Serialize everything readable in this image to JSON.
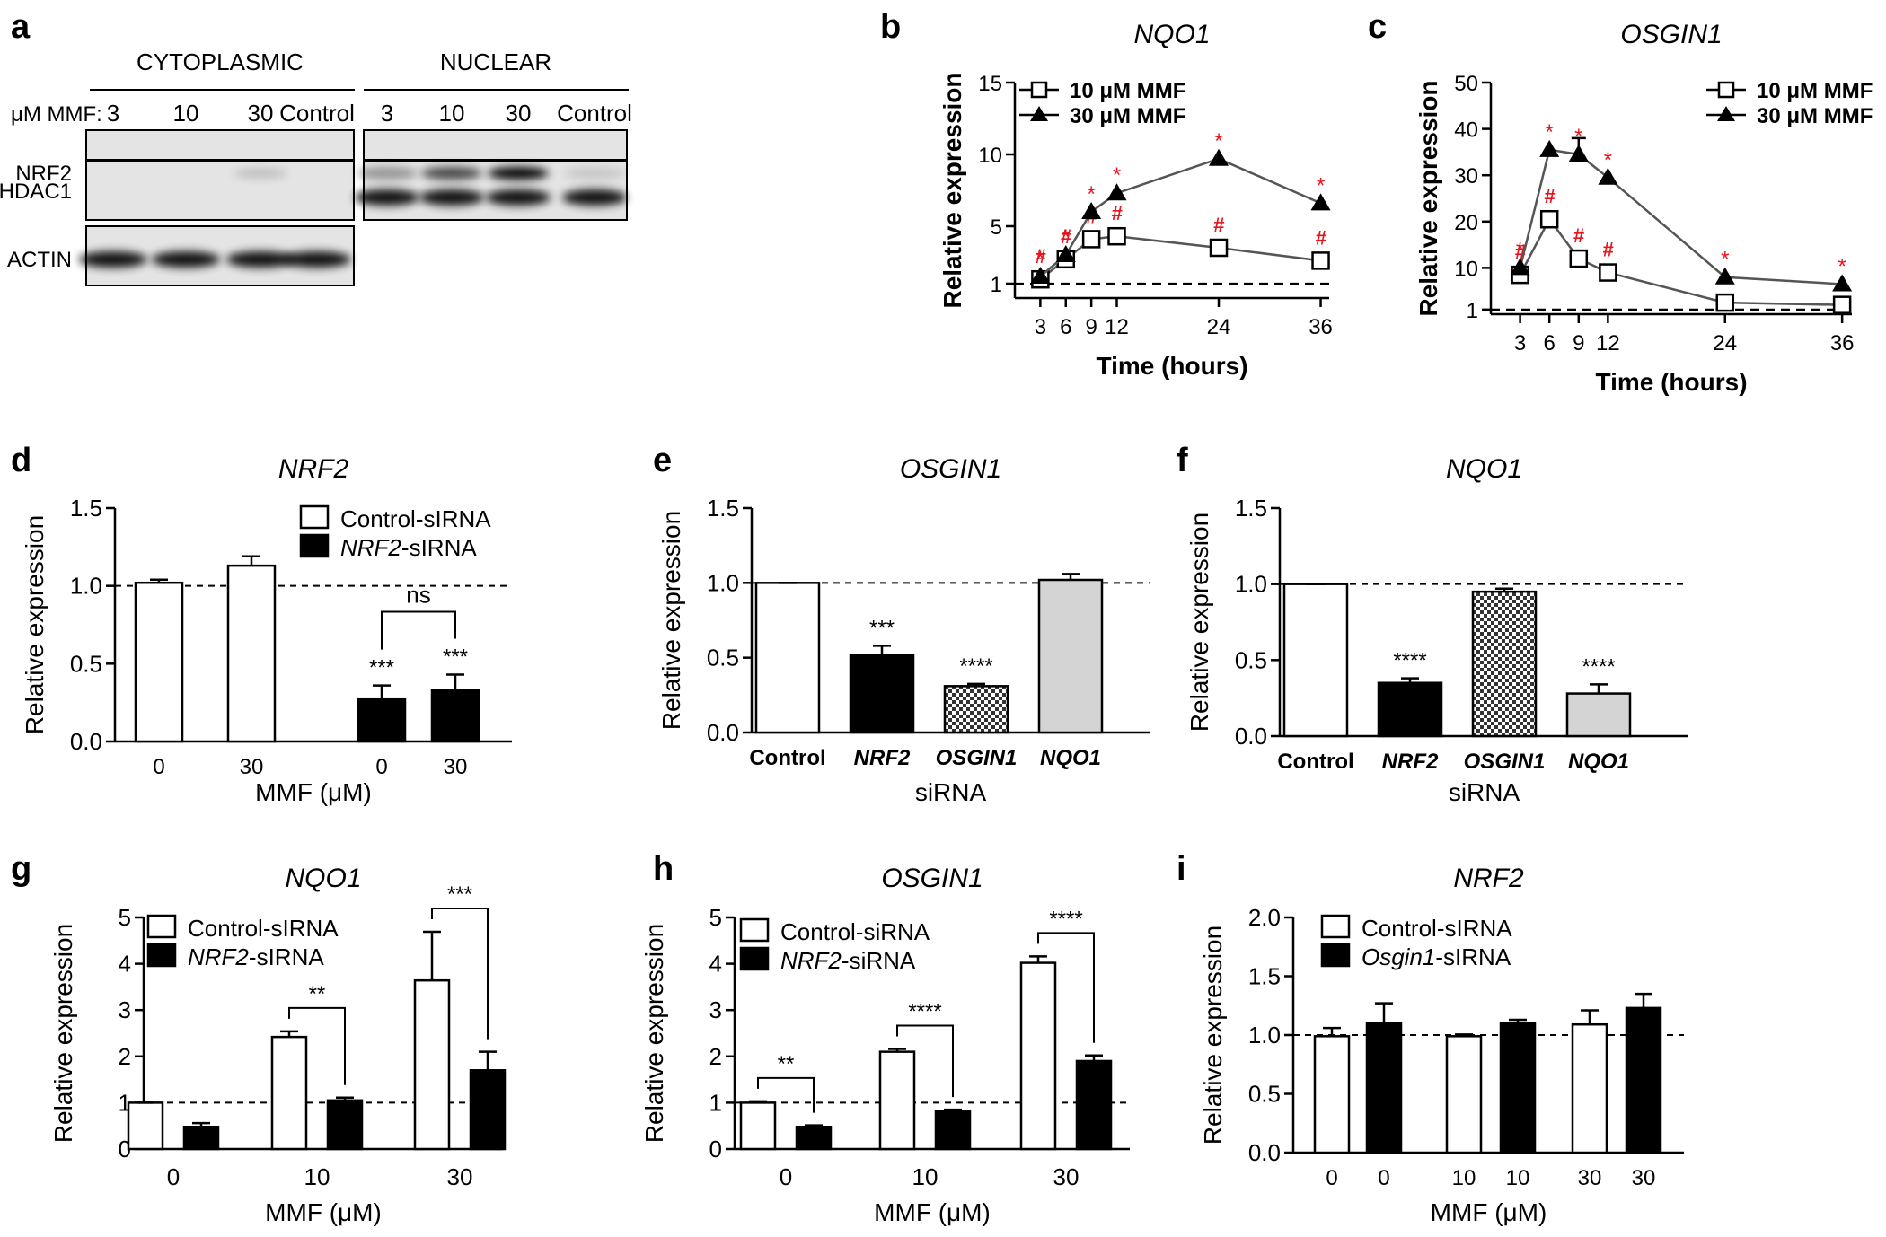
{
  "figure_description": "Multi-panel figure: western blot of NRF2 localization and qPCR relative expression charts for NRF2, NQO1 and OSGIN1",
  "colors": {
    "axis": "#000000",
    "significance_marks": "#e8141c",
    "bar_white": "#ffffff",
    "bar_black": "#000000",
    "bar_grey": "#d4d4d4",
    "line": "#555555"
  },
  "blot": {
    "label": "a",
    "section_titles": [
      "CYTOPLASMIC",
      "NUCLEAR"
    ],
    "lane_label": "μM MMF:",
    "lanes": [
      "3",
      "10",
      "30",
      "Control"
    ],
    "proteins": [
      "NRF2",
      "HDAC1",
      "ACTIN"
    ],
    "nrf2_cyto_intensity": [
      0,
      0,
      0.18,
      0
    ],
    "nrf2_nuc_intensity": [
      0.35,
      0.7,
      1.0,
      0.12
    ]
  },
  "chart_data": [
    {
      "type": "line",
      "label": "b",
      "title": "NQO1",
      "xlabel": "Time (hours)",
      "ylabel": "Relative expression",
      "x": [
        3,
        6,
        9,
        12,
        24,
        36
      ],
      "xlim": [
        0,
        37
      ],
      "ylim": [
        0,
        15
      ],
      "yticks": [
        1,
        5,
        10,
        15
      ],
      "baseline": 1,
      "series": [
        {
          "name": "10 μM MMF",
          "marker": "square",
          "values": [
            1.3,
            2.7,
            4.1,
            4.3,
            3.5,
            2.6
          ],
          "marks": [
            "#",
            "#",
            "#",
            "#",
            "#",
            "#"
          ]
        },
        {
          "name": "30 μM MMF",
          "marker": "triangle",
          "values": [
            1.5,
            3.0,
            6.0,
            7.3,
            9.7,
            6.6
          ],
          "marks": [
            "*",
            "*",
            "*",
            "*",
            "*",
            "*"
          ]
        }
      ]
    },
    {
      "type": "line",
      "label": "c",
      "title": "OSGIN1",
      "xlabel": "Time (hours)",
      "ylabel": "Relative expression",
      "x": [
        3,
        6,
        9,
        12,
        24,
        36
      ],
      "xlim": [
        0,
        37
      ],
      "ylim": [
        0,
        50
      ],
      "yticks": [
        1,
        10,
        20,
        30,
        40,
        50
      ],
      "baseline": 1,
      "series": [
        {
          "name": "10 μM MMF",
          "marker": "square",
          "values": [
            8.5,
            20.5,
            12,
            9,
            2.5,
            2
          ],
          "marks": [
            "#",
            "#",
            "#",
            "#",
            "",
            ""
          ]
        },
        {
          "name": "30 μM MMF",
          "marker": "triangle",
          "values": [
            10,
            35.5,
            34.5,
            29.5,
            8,
            6.5
          ],
          "errors": [
            0,
            0,
            3.5,
            0,
            0,
            0
          ],
          "marks": [
            "*",
            "*",
            "*",
            "*",
            "*",
            "*"
          ]
        }
      ]
    },
    {
      "type": "bar",
      "label": "d",
      "title": "NRF2",
      "xlabel": "MMF (μM)",
      "ylabel": "Relative expression",
      "categories": [
        "0",
        "30",
        "0",
        "30"
      ],
      "ylim": [
        0,
        1.5
      ],
      "yticks": [
        "0.0",
        "0.5",
        "1.0",
        "1.5"
      ],
      "baseline": 1,
      "values": [
        1.02,
        1.13,
        0.27,
        0.33
      ],
      "errors": [
        0.02,
        0.06,
        0.09,
        0.1
      ],
      "fills": [
        "white",
        "white",
        "black",
        "black"
      ],
      "labels": [
        "",
        "",
        "***",
        "***"
      ],
      "legend": [
        "Control-sIRNA",
        "NRF2-sIRNA"
      ],
      "legend_italic": [
        "",
        "NRF2"
      ],
      "legend_suffix": [
        "",
        "-sIRNA"
      ],
      "brackets": [
        {
          "from": 2,
          "to": 3,
          "text": "ns"
        }
      ]
    },
    {
      "type": "bar",
      "label": "e",
      "title": "OSGIN1",
      "xlabel": "siRNA",
      "ylabel": "Relative expression",
      "categories": [
        "Control",
        "NRF2",
        "OSGIN1",
        "NQO1"
      ],
      "ylim": [
        0,
        1.5
      ],
      "yticks": [
        "0.0",
        "0.5",
        "1.0",
        "1.5"
      ],
      "baseline": 1,
      "values": [
        1.0,
        0.52,
        0.31,
        1.02
      ],
      "errors": [
        0,
        0.06,
        0.015,
        0.04
      ],
      "fills": [
        "white",
        "black",
        "check",
        "grey"
      ],
      "labels": [
        "",
        "***",
        "****",
        ""
      ]
    },
    {
      "type": "bar",
      "label": "f",
      "title": "NQO1",
      "xlabel": "siRNA",
      "ylabel": "Relative expression",
      "categories": [
        "Control",
        "NRF2",
        "OSGIN1",
        "NQO1"
      ],
      "ylim": [
        0,
        1.5
      ],
      "yticks": [
        "0.0",
        "0.5",
        "1.0",
        "1.5"
      ],
      "baseline": 1,
      "values": [
        1.0,
        0.35,
        0.95,
        0.28
      ],
      "errors": [
        0,
        0.03,
        0.02,
        0.06
      ],
      "fills": [
        "white",
        "black",
        "check",
        "grey"
      ],
      "labels": [
        "",
        "****",
        "",
        "****"
      ]
    },
    {
      "type": "bar",
      "label": "g",
      "title": "NQO1",
      "xlabel": "MMF  (μM)",
      "ylabel": "Relative expression",
      "categories": [
        "0",
        "10",
        "30"
      ],
      "ylim": [
        0,
        5
      ],
      "yticks": [
        "0",
        "1",
        "2",
        "3",
        "4",
        "5"
      ],
      "baseline": 1,
      "series": [
        {
          "name": "Control-sIRNA",
          "values": [
            1.0,
            2.42,
            3.64
          ],
          "errors": [
            0,
            0.12,
            1.05
          ]
        },
        {
          "name": "NRF2-sIRNA",
          "values": [
            0.48,
            1.05,
            1.7
          ],
          "errors": [
            0.08,
            0.06,
            0.4
          ]
        }
      ],
      "legend": [
        "Control-sIRNA",
        "NRF2-sIRNA"
      ],
      "legend_italic": [
        "",
        "NRF2"
      ],
      "legend_suffix": [
        "",
        "-sIRNA"
      ],
      "brackets": [
        {
          "group": 1,
          "text": "**"
        },
        {
          "group": 2,
          "text": "***"
        }
      ]
    },
    {
      "type": "bar",
      "label": "h",
      "title": "OSGIN1",
      "xlabel": "MMF  (μM)",
      "ylabel": "Relative expression",
      "categories": [
        "0",
        "10",
        "30"
      ],
      "ylim": [
        0,
        5
      ],
      "yticks": [
        "0",
        "1",
        "2",
        "3",
        "4",
        "5"
      ],
      "baseline": 1,
      "series": [
        {
          "name": "Control-siRNA",
          "values": [
            1.0,
            2.1,
            4.02
          ],
          "errors": [
            0.03,
            0.06,
            0.14
          ]
        },
        {
          "name": "NRF2-siRNA",
          "values": [
            0.48,
            0.82,
            1.9
          ],
          "errors": [
            0.03,
            0.03,
            0.12
          ]
        }
      ],
      "legend": [
        "Control-siRNA",
        "NRF2-siRNA"
      ],
      "legend_italic": [
        "",
        "NRF2"
      ],
      "legend_suffix": [
        "",
        "-siRNA"
      ],
      "brackets": [
        {
          "group": 0,
          "text": "**"
        },
        {
          "group": 1,
          "text": "****"
        },
        {
          "group": 2,
          "text": "****"
        }
      ]
    },
    {
      "type": "bar",
      "label": "i",
      "title": "NRF2",
      "xlabel": "MMF (μM)",
      "ylabel": "Relative expression",
      "categories": [
        "0",
        "0",
        "10",
        "10",
        "30",
        "30"
      ],
      "ylim": [
        0,
        2
      ],
      "yticks": [
        "0.0",
        "0.5",
        "1.0",
        "1.5",
        "2.0"
      ],
      "baseline": 1,
      "values": [
        0.99,
        1.1,
        0.99,
        1.1,
        1.09,
        1.23
      ],
      "errors": [
        0.07,
        0.17,
        0.015,
        0.03,
        0.12,
        0.12
      ],
      "fills": [
        "white",
        "black",
        "white",
        "black",
        "white",
        "black"
      ],
      "labels": [
        "",
        "",
        "",
        "",
        "",
        ""
      ],
      "legend": [
        "Control-sIRNA",
        "Osgin1-sIRNA"
      ],
      "legend_italic": [
        "",
        "Osgin1"
      ],
      "legend_suffix": [
        "",
        "-sIRNA"
      ]
    }
  ]
}
